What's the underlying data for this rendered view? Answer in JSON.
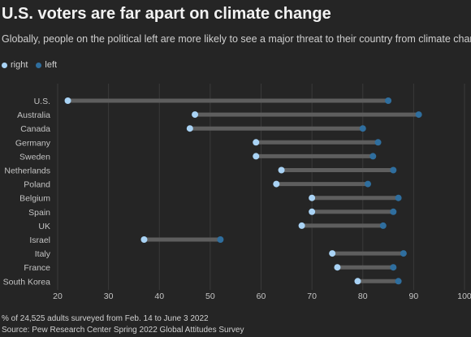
{
  "title": "U.S. voters are far apart on climate change",
  "subtitle": "Globally, people on the political left are more likely to see a major threat to their country from climate change",
  "legend": {
    "right_label": "right",
    "left_label": "left"
  },
  "colors": {
    "background": "#252525",
    "right": "#a9d3f5",
    "left": "#2f6e9e",
    "connector": "#5e5e5e",
    "grid": "#3a3a3a",
    "axis_text": "#c4c4c4"
  },
  "chart_data": {
    "type": "dumbbell",
    "categories": [
      "U.S.",
      "Australia",
      "Canada",
      "Germany",
      "Sweden",
      "Netherlands",
      "Poland",
      "Belgium",
      "Spain",
      "UK",
      "Israel",
      "Italy",
      "France",
      "South Korea"
    ],
    "series": [
      {
        "name": "right",
        "values": [
          22,
          47,
          46,
          59,
          59,
          64,
          63,
          70,
          70,
          68,
          37,
          74,
          75,
          79
        ]
      },
      {
        "name": "left",
        "values": [
          85,
          91,
          80,
          83,
          82,
          86,
          81,
          87,
          86,
          84,
          52,
          88,
          86,
          87
        ]
      }
    ],
    "xlim": [
      20,
      100
    ],
    "xticks": [
      20,
      30,
      40,
      50,
      60,
      70,
      80,
      90,
      100
    ],
    "grid": true,
    "legend_position": "top-left"
  },
  "footer": {
    "note": "% of 24,525 adults surveyed from Feb. 14 to June 3 2022",
    "source": "Source: Pew Research Center Spring 2022 Global Attitudes Survey"
  }
}
